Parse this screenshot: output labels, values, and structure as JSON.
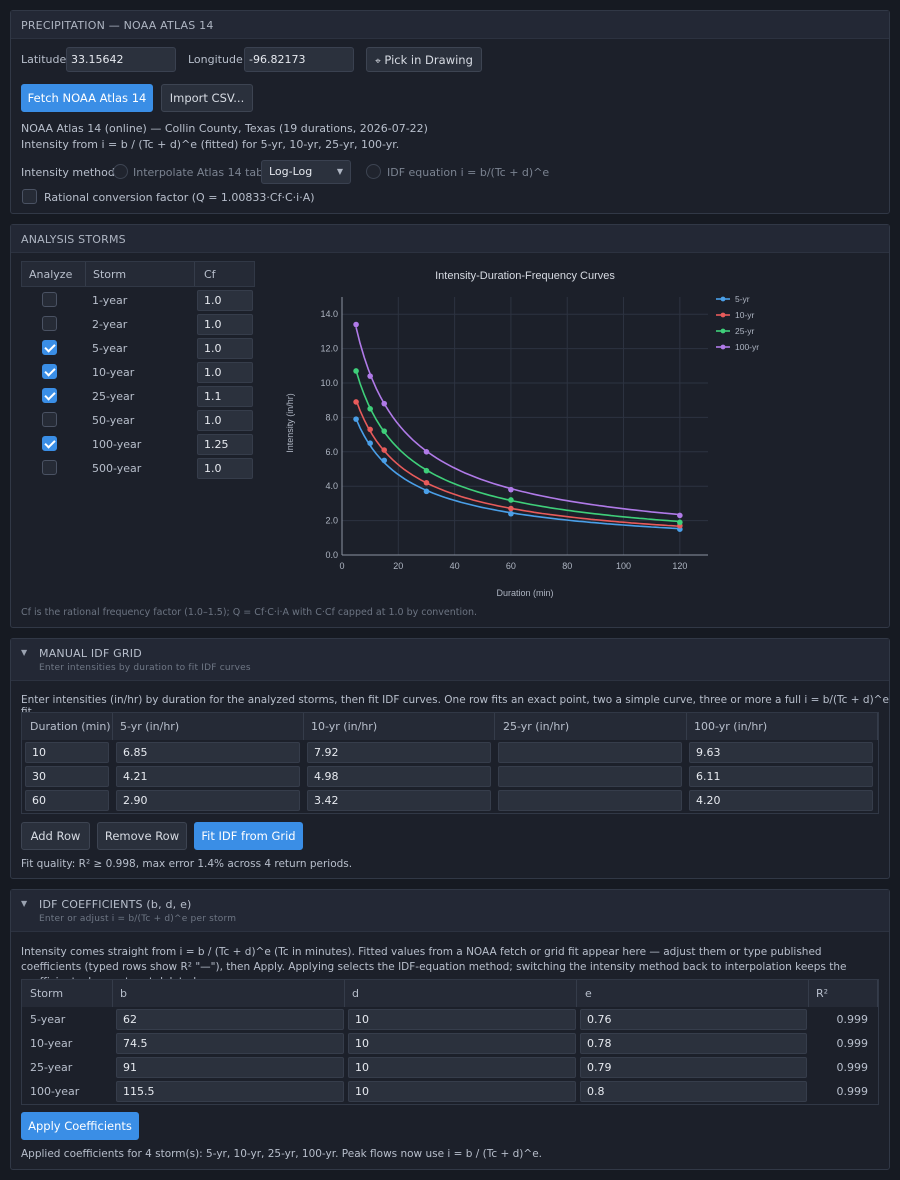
{
  "precip": {
    "title": "PRECIPITATION — NOAA ATLAS 14",
    "lat_label": "Latitude",
    "lat_value": "33.15642",
    "lon_label": "Longitude",
    "lon_value": "-96.82173",
    "pick_label": "Pick in Drawing",
    "fetch_label": "Fetch NOAA Atlas 14",
    "import_label": "Import CSV...",
    "status1": "NOAA Atlas 14 (online) — Collin County, Texas (19 durations, 2026-07-22)",
    "status2": "Intensity from i = b / (Tc + d)^e (fitted) for 5-yr, 10-yr, 25-yr, 100-yr.",
    "method_label": "Intensity method",
    "interp_label": "Interpolate Atlas 14 table",
    "interp_select": "Log-Log",
    "idf_label": "IDF equation i = b/(Tc + d)^e",
    "rational_label": "Rational conversion factor (Q = 1.00833·Cf·C·i·A)"
  },
  "storms": {
    "title": "ANALYSIS STORMS",
    "col_analyze": "Analyze",
    "col_storm": "Storm",
    "col_cf": "Cf",
    "rows": [
      {
        "name": "1-year",
        "cf": "1.0",
        "checked": false
      },
      {
        "name": "2-year",
        "cf": "1.0",
        "checked": false
      },
      {
        "name": "5-year",
        "cf": "1.0",
        "checked": true
      },
      {
        "name": "10-year",
        "cf": "1.0",
        "checked": true
      },
      {
        "name": "25-year",
        "cf": "1.1",
        "checked": true
      },
      {
        "name": "50-year",
        "cf": "1.0",
        "checked": false
      },
      {
        "name": "100-year",
        "cf": "1.25",
        "checked": true
      },
      {
        "name": "500-year",
        "cf": "1.0",
        "checked": false
      }
    ],
    "footnote": "Cf is the rational frequency factor (1.0–1.5); Q = Cf·C·i·A with C·Cf capped at 1.0 by convention."
  },
  "chart_data": {
    "type": "line",
    "title": "Intensity-Duration-Frequency Curves",
    "xlabel": "Duration (min)",
    "ylabel": "Intensity (in/hr)",
    "xlim": [
      0,
      130
    ],
    "ylim": [
      0,
      15
    ],
    "xticks": [
      "0",
      "20",
      "40",
      "60",
      "80",
      "100",
      "120"
    ],
    "yticks": [
      "0.0",
      "2.0",
      "4.0",
      "6.0",
      "8.0",
      "10.0",
      "12.0",
      "14.0"
    ],
    "grid": true,
    "legend": "top-right",
    "x": [
      5,
      10,
      15,
      30,
      60,
      120
    ],
    "series": [
      {
        "name": "5-yr",
        "color": "#4a9fe8",
        "b": 62,
        "d": 10,
        "e": 0.76,
        "values": [
          7.9,
          6.5,
          5.5,
          3.7,
          2.4,
          1.5
        ]
      },
      {
        "name": "10-yr",
        "color": "#e85b5b",
        "b": 74.5,
        "d": 10,
        "e": 0.78,
        "values": [
          8.9,
          7.3,
          6.1,
          4.2,
          2.7,
          1.7
        ]
      },
      {
        "name": "25-yr",
        "color": "#3fcf7a",
        "b": 91,
        "d": 10,
        "e": 0.79,
        "values": [
          10.7,
          8.5,
          7.2,
          4.9,
          3.2,
          1.9
        ]
      },
      {
        "name": "100-yr",
        "color": "#b07ae8",
        "b": 115.5,
        "d": 10,
        "e": 0.8,
        "values": [
          13.4,
          10.4,
          8.8,
          6.0,
          3.8,
          2.3
        ]
      }
    ]
  },
  "grid": {
    "title": "MANUAL IDF GRID",
    "subtitle": "Enter intensities by duration to fit IDF curves",
    "desc": "Enter intensities (in/hr) by duration for the analyzed storms, then fit IDF curves. One row fits an exact point, two a simple curve, three or more a full i = b/(Tc + d)^e fit.",
    "headers": [
      "Duration (min)",
      "5-yr (in/hr)",
      "10-yr (in/hr)",
      "25-yr (in/hr)",
      "100-yr (in/hr)"
    ],
    "rows": [
      [
        "10",
        "6.85",
        "7.92",
        "",
        "9.63"
      ],
      [
        "30",
        "4.21",
        "4.98",
        "",
        "6.11"
      ],
      [
        "60",
        "2.90",
        "3.42",
        "",
        "4.20"
      ]
    ],
    "add_row": "Add Row",
    "remove_row": "Remove Row",
    "fit_label": "Fit IDF from Grid",
    "fit_quality": "Fit quality: R² ≥ 0.998, max error 1.4% across 4 return periods."
  },
  "coef": {
    "title": "IDF COEFFICIENTS (b, d, e)",
    "subtitle": "Enter or adjust i = b/(Tc + d)^e per storm",
    "desc": "Intensity comes straight from i = b / (Tc + d)^e (Tc in minutes). Fitted values from a NOAA fetch or grid fit appear here — adjust them or type published coefficients (typed rows show R² \"—\"), then Apply. Applying selects the IDF-equation method; switching the intensity method back to interpolation keeps the coefficients dormant, not deleted.",
    "headers": [
      "Storm",
      "b",
      "d",
      "e",
      "R²"
    ],
    "rows": [
      [
        "5-year",
        "62",
        "10",
        "0.76",
        "0.999"
      ],
      [
        "10-year",
        "74.5",
        "10",
        "0.78",
        "0.999"
      ],
      [
        "25-year",
        "91",
        "10",
        "0.79",
        "0.999"
      ],
      [
        "100-year",
        "115.5",
        "10",
        "0.8",
        "0.999"
      ]
    ],
    "apply_label": "Apply Coefficients",
    "applied_text": "Applied coefficients for 4 storm(s): 5-yr, 10-yr, 25-yr, 100-yr. Peak flows now use i = b / (Tc + d)^e."
  }
}
